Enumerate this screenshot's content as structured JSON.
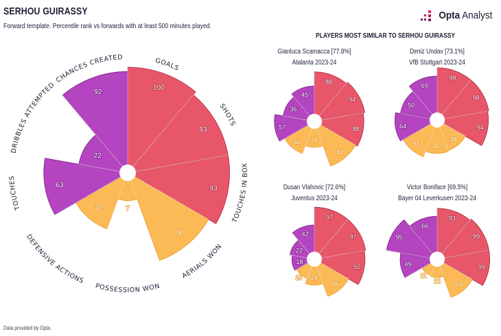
{
  "header": {
    "title": "SERHOU GUIRASSY",
    "subtitle": "Forward template. Percentile rank vs forwards with at least 500 minutes played."
  },
  "logo": {
    "brand": "Opta",
    "product": "Analyst",
    "icon": "opta-dots-icon"
  },
  "similar_title": "PLAYERS MOST SIMILAR TO SERHOU GUIRASSY",
  "footer": "Data provided by Opta.",
  "colors": {
    "attacking": "#e8566a",
    "possession": "#b444bf",
    "defending": "#fbba55",
    "outline_attacking": "#a8283e",
    "outline_possession": "#7a1f88",
    "outline_defending": "#e89a2a"
  },
  "chart_data": [
    {
      "type": "pie",
      "subtype": "polar-area",
      "player": "SERHOU GUIRASSY",
      "categories": [
        "GOALS",
        "SHOTS",
        "TOUCHES IN BOX",
        "AERIALS WON",
        "POSSESSION WON",
        "DEFENSIVE ACTIONS",
        "TOUCHES",
        "DRIBBLES ATTEMPTED",
        "CHANCES CREATED"
      ],
      "groups": [
        "attacking",
        "attacking",
        "attacking",
        "defending",
        "defending",
        "defending",
        "possession",
        "possession",
        "possession"
      ],
      "values": [
        100,
        93,
        93,
        78,
        7,
        32,
        63,
        22,
        92
      ],
      "range": [
        0,
        100
      ]
    },
    {
      "type": "pie",
      "subtype": "polar-area",
      "player": "Gianluca Scamacca [77.8%]",
      "team": "Atalanta 2023-24",
      "values": [
        88,
        94,
        88,
        81,
        24,
        42,
        57,
        36,
        45
      ]
    },
    {
      "type": "pie",
      "subtype": "polar-area",
      "player": "Deniz Undav [73.1%]",
      "team": "VfB Stuttgart 2023-24",
      "values": [
        98,
        98,
        94,
        38,
        40,
        55,
        64,
        50,
        69
      ]
    },
    {
      "type": "pie",
      "subtype": "polar-area",
      "player": "Dusan Vlahovic [72.6%]",
      "team": "Juventus 2023-24",
      "values": [
        97,
        97,
        92,
        56,
        24,
        15,
        18,
        22,
        42
      ]
    },
    {
      "type": "pie",
      "subtype": "polar-area",
      "player": "Victor Boniface [69.5%]",
      "team": "Bayer 04 Leverkusen 2023-24",
      "values": [
        93,
        99,
        99,
        59,
        12,
        11,
        49,
        95,
        66
      ]
    }
  ]
}
